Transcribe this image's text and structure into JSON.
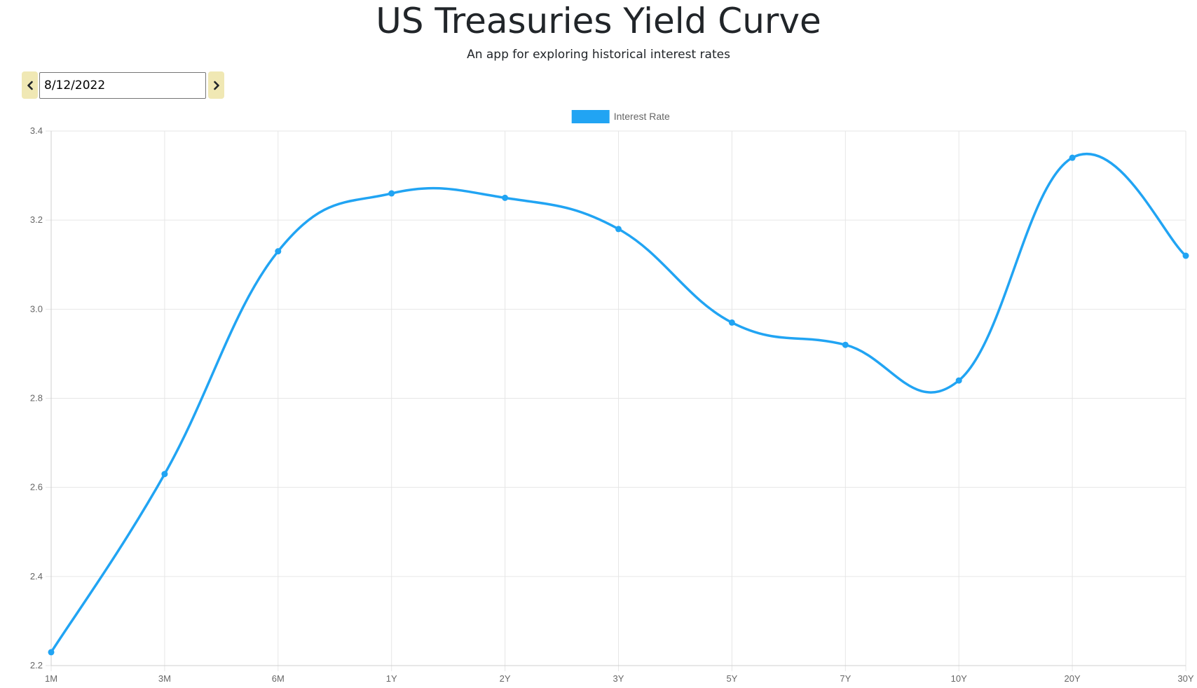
{
  "header": {
    "title": "US Treasuries Yield Curve",
    "subtitle": "An app for exploring historical interest rates"
  },
  "date_nav": {
    "value": "8/12/2022",
    "prev_icon": "chevron-left-icon",
    "next_icon": "chevron-right-icon"
  },
  "colors": {
    "series": "#21a4f3",
    "button_bg": "#f0e8b4",
    "grid": "#e6e6e6",
    "tick_text": "#666666"
  },
  "chart_data": {
    "type": "line",
    "categories": [
      "1M",
      "3M",
      "6M",
      "1Y",
      "2Y",
      "3Y",
      "5Y",
      "7Y",
      "10Y",
      "20Y",
      "30Y"
    ],
    "series": [
      {
        "name": "Interest Rate",
        "values": [
          2.23,
          2.63,
          3.13,
          3.26,
          3.25,
          3.18,
          2.97,
          2.92,
          2.84,
          3.34,
          3.12
        ]
      }
    ],
    "yticks": [
      "2.2",
      "2.4",
      "2.6",
      "2.8",
      "3.0",
      "3.2",
      "3.4"
    ],
    "ylim": [
      2.2,
      3.4
    ],
    "grid": true,
    "legend": "top-center",
    "smooth": true
  }
}
